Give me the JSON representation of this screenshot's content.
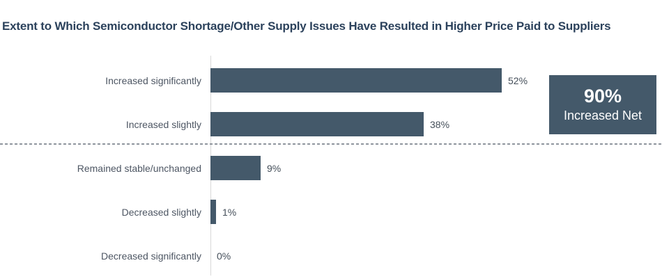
{
  "title": "Extent to Which Semiconductor Shortage/Other Supply Issues Have Resulted in Higher Price Paid to Suppliers",
  "chart_data": {
    "type": "bar",
    "orientation": "horizontal",
    "title": "Extent to Which Semiconductor Shortage/Other Supply Issues Have Resulted in Higher Price Paid to Suppliers",
    "categories": [
      "Increased significantly",
      "Increased slightly",
      "Remained stable/unchanged",
      "Decreased slightly",
      "Decreased significantly"
    ],
    "values": [
      52,
      38,
      9,
      1,
      0
    ],
    "value_labels": [
      "52%",
      "38%",
      "9%",
      "1%",
      "0%"
    ],
    "xlabel": "",
    "ylabel": "",
    "xlim": [
      0,
      55
    ],
    "grid": false,
    "legend": "none",
    "separator_after_index": 1,
    "annotation": {
      "value": "90%",
      "label": "Increased Net"
    }
  },
  "callout": {
    "value": "90%",
    "label": "Increased Net"
  },
  "colors": {
    "background": "#ffffff",
    "bar": "#44596a",
    "title": "#2c425c",
    "label": "#4d5663",
    "value": "#454f5a",
    "separator": "#8f959d",
    "axis_line": "#d9d9d9",
    "callout_bg": "#44596a",
    "callout_text": "#ffffff"
  }
}
